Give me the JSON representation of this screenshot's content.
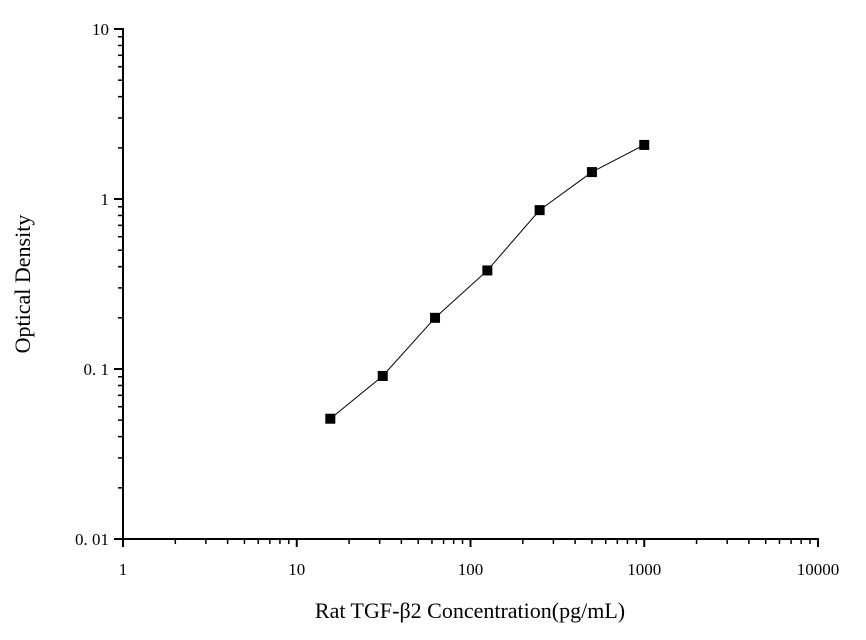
{
  "chart_data": {
    "type": "line",
    "title": "",
    "xlabel": "Rat TGF-β2 Concentration(pg/mL)",
    "ylabel": "Optical Density",
    "x_scale": "log",
    "y_scale": "log",
    "xlim": [
      1,
      10000
    ],
    "ylim": [
      0.01,
      10
    ],
    "x_ticks": [
      "1",
      "10",
      "100",
      "1000",
      "10000"
    ],
    "y_ticks": [
      "0. 01",
      "0. 1",
      "1",
      "10"
    ],
    "grid": false,
    "marker": "square",
    "color": "#000000",
    "series": [
      {
        "x": [
          15.6,
          31.25,
          62.5,
          125,
          250,
          500,
          1000
        ],
        "y": [
          0.051,
          0.091,
          0.2,
          0.38,
          0.86,
          1.44,
          2.08
        ]
      }
    ]
  }
}
